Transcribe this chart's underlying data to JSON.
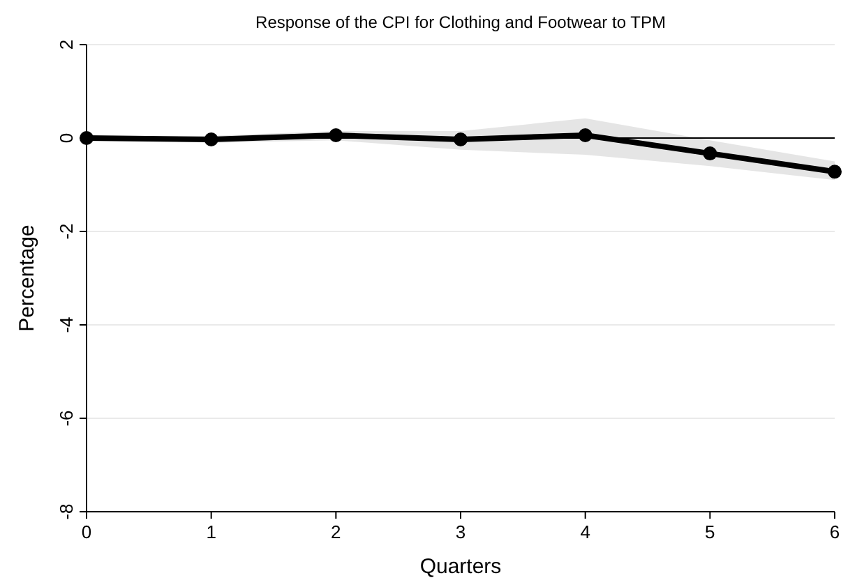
{
  "chart_data": {
    "type": "line",
    "title": "Response of the CPI for Clothing and Footwear to TPM",
    "xlabel": "Quarters",
    "ylabel": "Percentage",
    "x": [
      0,
      1,
      2,
      3,
      4,
      5,
      6
    ],
    "series": [
      {
        "color": "#000000",
        "values": [
          0,
          -0.03,
          0.06,
          -0.03,
          0.06,
          -0.33,
          -0.72
        ],
        "lower": [
          0,
          -0.1,
          -0.05,
          -0.25,
          -0.36,
          -0.6,
          -0.9
        ],
        "upper": [
          0,
          0.05,
          0.15,
          0.15,
          0.42,
          -0.05,
          -0.5
        ]
      }
    ],
    "xlim": [
      0,
      6
    ],
    "xticks": [
      0,
      1,
      2,
      3,
      4,
      5,
      6
    ],
    "ylim": [
      -8,
      2
    ],
    "yticks": [
      -8,
      -6,
      -4,
      -2,
      0,
      2
    ],
    "grid": "y",
    "marker": "circle",
    "line_style": "solid",
    "ref_lines": [
      {
        "axis": "y",
        "value": 0,
        "color": "#000000"
      }
    ]
  }
}
